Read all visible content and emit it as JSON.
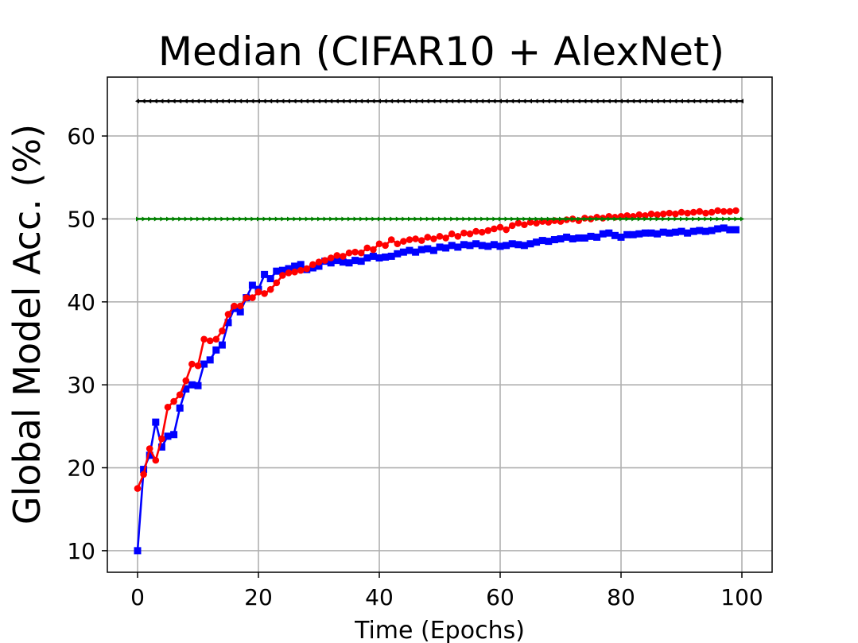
{
  "chart_data": {
    "type": "line",
    "title": "Median (CIFAR10 + AlexNet)",
    "xlabel": "Time (Epochs)",
    "ylabel": "Global Model Acc. (%)",
    "xlim": [
      -5,
      105
    ],
    "ylim": [
      7.4,
      67.1
    ],
    "xticks": [
      0,
      20,
      40,
      60,
      80,
      100
    ],
    "yticks": [
      10,
      20,
      30,
      40,
      50,
      60
    ],
    "grid": true,
    "legend": "none",
    "series": [
      {
        "color": "#0000ff",
        "marker": "square",
        "x": [
          0,
          1,
          2,
          3,
          4,
          5,
          6,
          7,
          8,
          9,
          10,
          11,
          12,
          13,
          14,
          15,
          16,
          17,
          18,
          19,
          20,
          21,
          22,
          23,
          24,
          25,
          26,
          27,
          28,
          29,
          30,
          31,
          32,
          33,
          34,
          35,
          36,
          37,
          38,
          39,
          40,
          41,
          42,
          43,
          44,
          45,
          46,
          47,
          48,
          49,
          50,
          51,
          52,
          53,
          54,
          55,
          56,
          57,
          58,
          59,
          60,
          61,
          62,
          63,
          64,
          65,
          66,
          67,
          68,
          69,
          70,
          71,
          72,
          73,
          74,
          75,
          76,
          77,
          78,
          79,
          80,
          81,
          82,
          83,
          84,
          85,
          86,
          87,
          88,
          89,
          90,
          91,
          92,
          93,
          94,
          95,
          96,
          97,
          98,
          99
        ],
        "values": [
          10.0,
          19.8,
          21.5,
          25.5,
          22.5,
          23.8,
          24.0,
          27.2,
          29.5,
          30.0,
          29.9,
          32.5,
          33.0,
          34.2,
          34.8,
          37.5,
          39.2,
          38.8,
          40.5,
          42.0,
          41.5,
          43.3,
          42.8,
          43.7,
          43.8,
          44.0,
          44.3,
          44.5,
          43.9,
          44.1,
          44.3,
          44.9,
          44.7,
          45.0,
          44.8,
          44.7,
          45.0,
          44.9,
          45.3,
          45.5,
          45.3,
          45.4,
          45.5,
          45.8,
          46.0,
          46.2,
          46.0,
          46.3,
          46.4,
          46.2,
          46.6,
          46.5,
          46.8,
          46.6,
          46.9,
          46.8,
          47.0,
          46.8,
          46.7,
          46.9,
          46.7,
          46.8,
          47.0,
          46.9,
          46.8,
          47.0,
          47.2,
          47.4,
          47.3,
          47.5,
          47.6,
          47.8,
          47.6,
          47.7,
          47.7,
          47.9,
          47.8,
          48.2,
          48.3,
          48.0,
          47.8,
          48.1,
          48.1,
          48.2,
          48.3,
          48.3,
          48.2,
          48.4,
          48.3,
          48.4,
          48.5,
          48.3,
          48.5,
          48.6,
          48.5,
          48.6,
          48.8,
          48.9,
          48.7,
          48.7
        ]
      },
      {
        "color": "#ff0000",
        "marker": "circle",
        "x": [
          0,
          1,
          2,
          3,
          4,
          5,
          6,
          7,
          8,
          9,
          10,
          11,
          12,
          13,
          14,
          15,
          16,
          17,
          18,
          19,
          20,
          21,
          22,
          23,
          24,
          25,
          26,
          27,
          28,
          29,
          30,
          31,
          32,
          33,
          34,
          35,
          36,
          37,
          38,
          39,
          40,
          41,
          42,
          43,
          44,
          45,
          46,
          47,
          48,
          49,
          50,
          51,
          52,
          53,
          54,
          55,
          56,
          57,
          58,
          59,
          60,
          61,
          62,
          63,
          64,
          65,
          66,
          67,
          68,
          69,
          70,
          71,
          72,
          73,
          74,
          75,
          76,
          77,
          78,
          79,
          80,
          81,
          82,
          83,
          84,
          85,
          86,
          87,
          88,
          89,
          90,
          91,
          92,
          93,
          94,
          95,
          96,
          97,
          98,
          99
        ],
        "values": [
          17.5,
          19.2,
          22.3,
          20.9,
          23.5,
          27.3,
          28.0,
          28.8,
          30.5,
          32.5,
          32.3,
          35.5,
          35.3,
          35.5,
          36.5,
          38.5,
          39.5,
          39.5,
          40.5,
          40.5,
          41.2,
          41.0,
          41.5,
          42.3,
          43.2,
          43.5,
          43.6,
          43.8,
          44.0,
          44.5,
          44.8,
          45.0,
          45.3,
          45.6,
          45.5,
          45.9,
          46.0,
          45.9,
          46.5,
          46.3,
          47.0,
          46.8,
          47.5,
          47.0,
          47.3,
          47.5,
          47.6,
          47.4,
          47.8,
          47.6,
          47.9,
          47.7,
          48.2,
          47.9,
          48.3,
          48.2,
          48.5,
          48.4,
          48.6,
          48.8,
          49.0,
          48.7,
          49.2,
          49.5,
          49.3,
          49.6,
          49.5,
          49.7,
          49.6,
          49.8,
          49.7,
          49.9,
          50.0,
          49.8,
          50.1,
          50.0,
          50.2,
          50.1,
          50.3,
          50.2,
          50.3,
          50.4,
          50.3,
          50.5,
          50.4,
          50.6,
          50.5,
          50.6,
          50.7,
          50.6,
          50.8,
          50.7,
          50.8,
          50.9,
          50.7,
          50.8,
          51.0,
          50.9,
          50.9,
          51.0
        ]
      },
      {
        "color": "#008000",
        "marker": "triangle-right",
        "x": [
          0,
          100
        ],
        "values": [
          50.0,
          50.0
        ]
      },
      {
        "color": "#000000",
        "marker": "triangle-left",
        "x": [
          0,
          100
        ],
        "values": [
          64.2,
          64.2
        ]
      }
    ]
  }
}
